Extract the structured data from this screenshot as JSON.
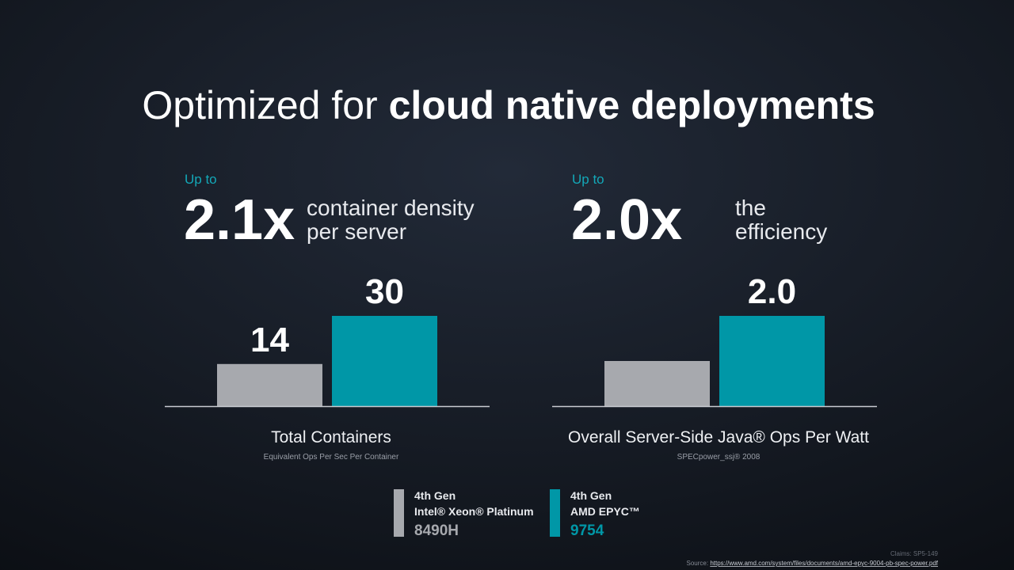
{
  "title": {
    "light": "Optimized for",
    "bold": "cloud native deployments"
  },
  "chart_data": [
    {
      "type": "bar",
      "kicker": "Up to",
      "headline": "2.1x",
      "headline_text": [
        "container density",
        "per server"
      ],
      "xlabel": "Total Containers",
      "subtitle": "Equivalent Ops Per Sec Per Container",
      "values": [
        14,
        30
      ],
      "value_labels": [
        "14",
        "30"
      ],
      "colors": [
        "#a7a9ae",
        "#0097a7"
      ],
      "ylim": [
        0,
        30
      ]
    },
    {
      "type": "bar",
      "kicker": "Up to",
      "headline": "2.0x",
      "headline_text": [
        "the",
        "efficiency"
      ],
      "xlabel": "Overall Server-Side Java® Ops Per Watt",
      "subtitle": "SPECpower_ssj® 2008",
      "values": [
        1,
        2
      ],
      "value_labels": [
        null,
        "2.0"
      ],
      "colors": [
        "#a7a9ae",
        "#0097a7"
      ],
      "ylim": [
        0,
        2
      ]
    }
  ],
  "legend": [
    {
      "lines": [
        "4th Gen",
        "Intel® Xeon® Platinum",
        "8490H"
      ],
      "color": "#a7a9ae"
    },
    {
      "lines": [
        "4th Gen",
        "AMD EPYC™",
        "9754"
      ],
      "color": "#0097a7"
    }
  ],
  "footer": {
    "claims": "Claims: SP5-149",
    "source_label": "Source:",
    "source_url": "https://www.amd.com/system/files/documents/amd-epyc-9004-pb-spec-power.pdf"
  }
}
